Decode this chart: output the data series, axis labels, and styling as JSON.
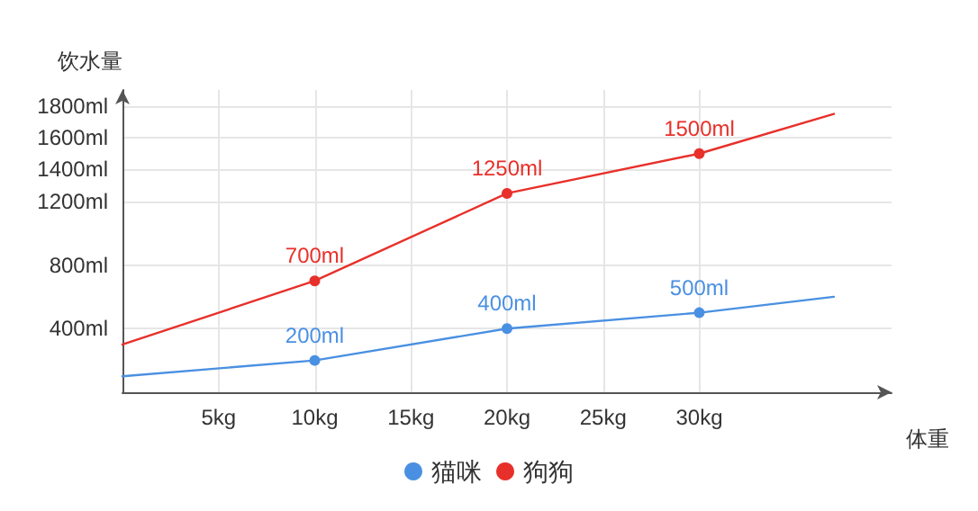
{
  "chart_data": {
    "type": "line",
    "xlabel": "体重",
    "ylabel": "饮水量",
    "xlim": [
      0,
      40
    ],
    "xticks": [
      {
        "value": 5,
        "label": "5kg"
      },
      {
        "value": 10,
        "label": "10kg"
      },
      {
        "value": 15,
        "label": "15kg"
      },
      {
        "value": 20,
        "label": "20kg"
      },
      {
        "value": 25,
        "label": "25kg"
      },
      {
        "value": 30,
        "label": "30kg"
      }
    ],
    "ylim": [
      0,
      1900
    ],
    "yticks": [
      {
        "value": 400,
        "label": "400ml"
      },
      {
        "value": 800,
        "label": "800ml"
      },
      {
        "value": 1200,
        "label": "1200ml"
      },
      {
        "value": 1400,
        "label": "1400ml"
      },
      {
        "value": 1600,
        "label": "1600ml"
      },
      {
        "value": 1800,
        "label": "1800ml"
      }
    ],
    "x": [
      0,
      10,
      20,
      30,
      37
    ],
    "series": [
      {
        "name": "猫咪",
        "color": "#4a90e2",
        "values": [
          100,
          200,
          400,
          500,
          600
        ],
        "value_labels": [
          null,
          "200ml",
          "400ml",
          "500ml",
          null
        ]
      },
      {
        "name": "狗狗",
        "color": "#e8302a",
        "values": [
          300,
          700,
          1250,
          1500,
          1750
        ],
        "value_labels": [
          null,
          "700ml",
          "1250ml",
          "1500ml",
          null
        ]
      }
    ],
    "grid": true,
    "legend": "bottom",
    "marker": "circle",
    "line_style": "solid"
  }
}
